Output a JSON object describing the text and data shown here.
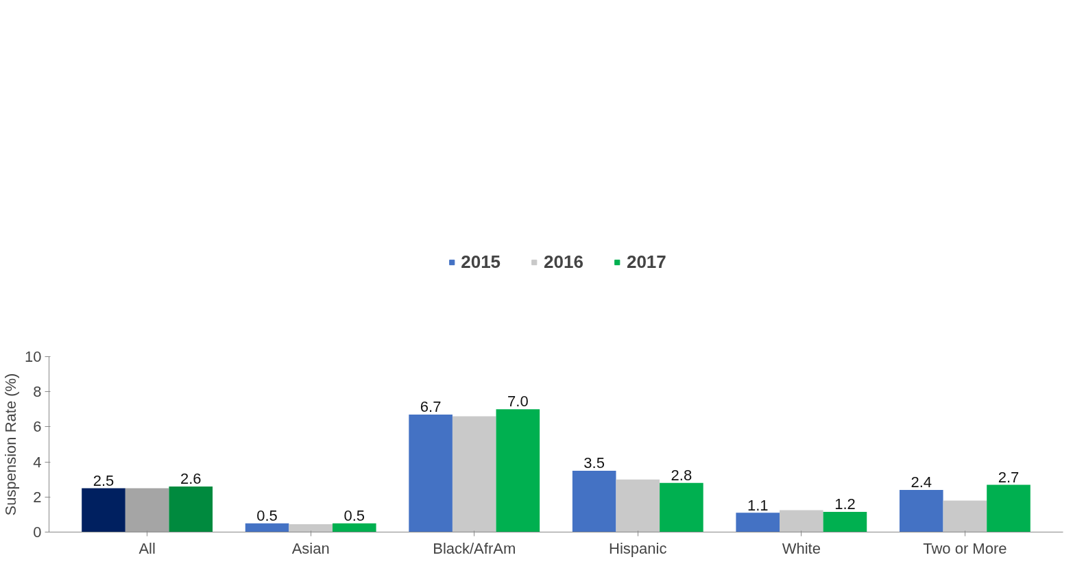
{
  "chart_data": {
    "type": "bar",
    "ylabel": "Suspension Rate (%)",
    "categories": [
      "All",
      "Asian",
      "Black/AfrAm",
      "Hispanic",
      "White",
      "Two or More"
    ],
    "series": [
      {
        "name": "2015",
        "color": "#4472c4",
        "colors": [
          "#002060",
          "#4472c4",
          "#4472c4",
          "#4472c4",
          "#4472c4",
          "#4472c4"
        ],
        "values": [
          2.5,
          0.5,
          6.7,
          3.5,
          1.1,
          2.4
        ],
        "value_labels": [
          "2.5",
          "0.5",
          "6.7",
          "3.5",
          "1.1",
          "2.4"
        ]
      },
      {
        "name": "2016",
        "color": "#c9c9c9",
        "colors": [
          "#a5a5a5",
          "#c9c9c9",
          "#c9c9c9",
          "#c9c9c9",
          "#c9c9c9",
          "#c9c9c9"
        ],
        "values": [
          2.5,
          0.45,
          6.6,
          3.0,
          1.25,
          1.8
        ]
      },
      {
        "name": "2017",
        "color": "#00b050",
        "colors": [
          "#008a3e",
          "#00b050",
          "#00b050",
          "#00b050",
          "#00b050",
          "#00b050"
        ],
        "values": [
          2.6,
          0.5,
          7.0,
          2.8,
          1.15,
          2.7
        ],
        "value_labels": [
          "2.6",
          "0.5",
          "7.0",
          "2.8",
          "1.2",
          "2.7"
        ]
      }
    ],
    "ylim": [
      0,
      10
    ],
    "yticks": [
      0,
      2,
      4,
      6,
      8,
      10
    ],
    "grid": false,
    "legend": "top"
  }
}
